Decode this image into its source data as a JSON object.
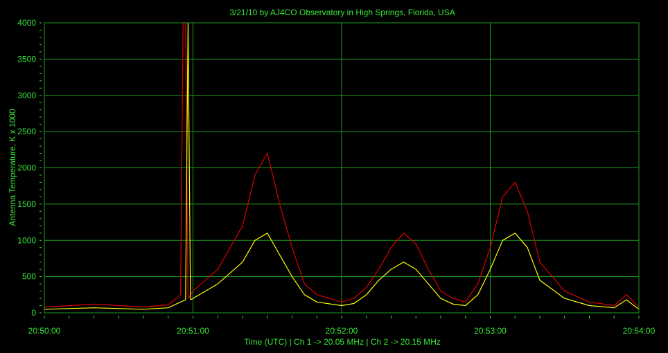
{
  "chart_data": {
    "type": "line",
    "title": "3/21/10  by  AJ4CO Observatory  in  High Springs, Florida, USA",
    "xlabel": "Time (UTC)  |  Ch 1 -> 20.05 MHz  |  Ch 2 -> 20.15 MHz",
    "ylabel": "Antenna Temperature, K x 1000",
    "xlim": [
      "20:50:00",
      "20:54:00"
    ],
    "ylim": [
      0,
      4000
    ],
    "x_ticks": [
      "20:50:00",
      "20:51:00",
      "20:52:00",
      "20:53:00",
      "20:54:00"
    ],
    "y_ticks": [
      "0",
      "500",
      "1000",
      "1500",
      "2000",
      "2500",
      "3000",
      "3500",
      "4000"
    ],
    "grid": true,
    "series": [
      {
        "color": "#dd0000",
        "x": [
          "20:50:00",
          "20:50:20",
          "20:50:40",
          "20:50:50",
          "20:50:55",
          "20:50:56",
          "20:50:57",
          "20:50:58",
          "20:51:00",
          "20:51:10",
          "20:51:20",
          "20:51:25",
          "20:51:30",
          "20:51:35",
          "20:51:40",
          "20:51:45",
          "20:51:50",
          "20:52:00",
          "20:52:05",
          "20:52:10",
          "20:52:15",
          "20:52:20",
          "20:52:25",
          "20:52:30",
          "20:52:35",
          "20:52:40",
          "20:52:45",
          "20:52:50",
          "20:52:55",
          "20:53:00",
          "20:53:05",
          "20:53:10",
          "20:53:15",
          "20:53:20",
          "20:53:30",
          "20:53:40",
          "20:53:50",
          "20:53:55",
          "20:54:00"
        ],
        "y": [
          80,
          120,
          80,
          110,
          250,
          4000,
          4000,
          200,
          300,
          600,
          1200,
          1900,
          2200,
          1500,
          900,
          400,
          250,
          150,
          200,
          350,
          600,
          900,
          1100,
          950,
          600,
          300,
          200,
          150,
          400,
          900,
          1600,
          1800,
          1400,
          700,
          300,
          150,
          100,
          250,
          80
        ]
      },
      {
        "color": "#ffff00",
        "x": [
          "20:50:00",
          "20:50:20",
          "20:50:40",
          "20:50:50",
          "20:50:55",
          "20:50:57",
          "20:50:58",
          "20:50:59",
          "20:51:00",
          "20:51:10",
          "20:51:20",
          "20:51:25",
          "20:51:30",
          "20:51:35",
          "20:51:40",
          "20:51:45",
          "20:51:50",
          "20:52:00",
          "20:52:05",
          "20:52:10",
          "20:52:15",
          "20:52:20",
          "20:52:25",
          "20:52:30",
          "20:52:35",
          "20:52:40",
          "20:52:45",
          "20:52:50",
          "20:52:55",
          "20:53:00",
          "20:53:05",
          "20:53:10",
          "20:53:15",
          "20:53:20",
          "20:53:30",
          "20:53:40",
          "20:53:50",
          "20:53:55",
          "20:54:00"
        ],
        "y": [
          50,
          70,
          50,
          70,
          150,
          180,
          4000,
          180,
          200,
          400,
          700,
          1000,
          1100,
          800,
          500,
          250,
          150,
          100,
          130,
          250,
          450,
          600,
          700,
          600,
          400,
          200,
          120,
          100,
          250,
          600,
          1000,
          1100,
          900,
          450,
          200,
          100,
          70,
          180,
          50
        ]
      }
    ]
  }
}
